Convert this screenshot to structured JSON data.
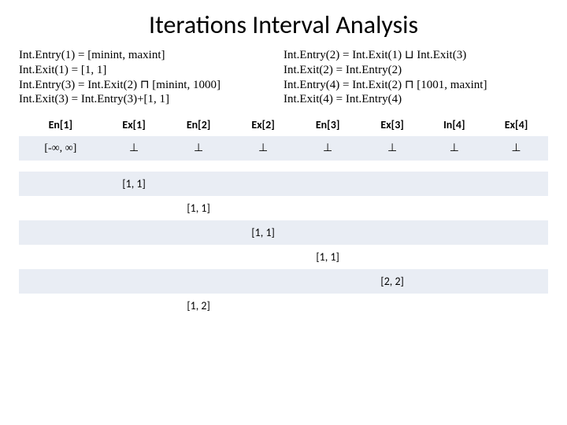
{
  "title": "Iterations Interval Analysis",
  "equations": {
    "c1l1": "Int.Entry(1) = [minint, maxint]",
    "c1l2": "Int.Exit(1) = [1, 1]",
    "c2l1": "Int.Entry(2) = Int.Exit(1) ⊔ Int.Exit(3)",
    "c2l2": "Int.Exit(2) = Int.Entry(2)",
    "c3l1": "Int.Entry(3) = Int.Exit(2) ⊓ [minint, 1000]",
    "c3l2": "Int.Exit(3) = Int.Entry(3)+[1, 1]",
    "c4l1": "Int.Entry(4) = Int.Exit(2) ⊓ [1001, maxint]",
    "c4l2": "Int.Exit(4) = Int.Entry(4)"
  },
  "table": {
    "headers": [
      "En[1]",
      "Ex[1]",
      "En[2]",
      "Ex[2]",
      "En[3]",
      "Ex[3]",
      "In[4]",
      "Ex[4]"
    ],
    "rows": [
      [
        "[-∞, ∞]",
        "⊥",
        "⊥",
        "⊥",
        "⊥",
        "⊥",
        "⊥",
        "⊥"
      ],
      [
        "",
        "",
        "",
        "",
        "",
        "",
        "",
        ""
      ],
      [
        "",
        "[1, 1]",
        "",
        "",
        "",
        "",
        "",
        ""
      ],
      [
        "",
        "",
        "[1, 1]",
        "",
        "",
        "",
        "",
        ""
      ],
      [
        "",
        "",
        "",
        "[1, 1]",
        "",
        "",
        "",
        ""
      ],
      [
        "",
        "",
        "",
        "",
        "[1, 1]",
        "",
        "",
        ""
      ],
      [
        "",
        "",
        "",
        "",
        "",
        "[2, 2]",
        "",
        ""
      ],
      [
        "",
        "",
        "[1, 2]",
        "",
        "",
        "",
        "",
        ""
      ]
    ],
    "header_bg": "#ffffff",
    "row_odd_bg": "#e9edf4",
    "row_even_bg": "#ffffff",
    "fontsize": 14
  },
  "colors": {
    "text": "#000000",
    "background": "#ffffff"
  }
}
